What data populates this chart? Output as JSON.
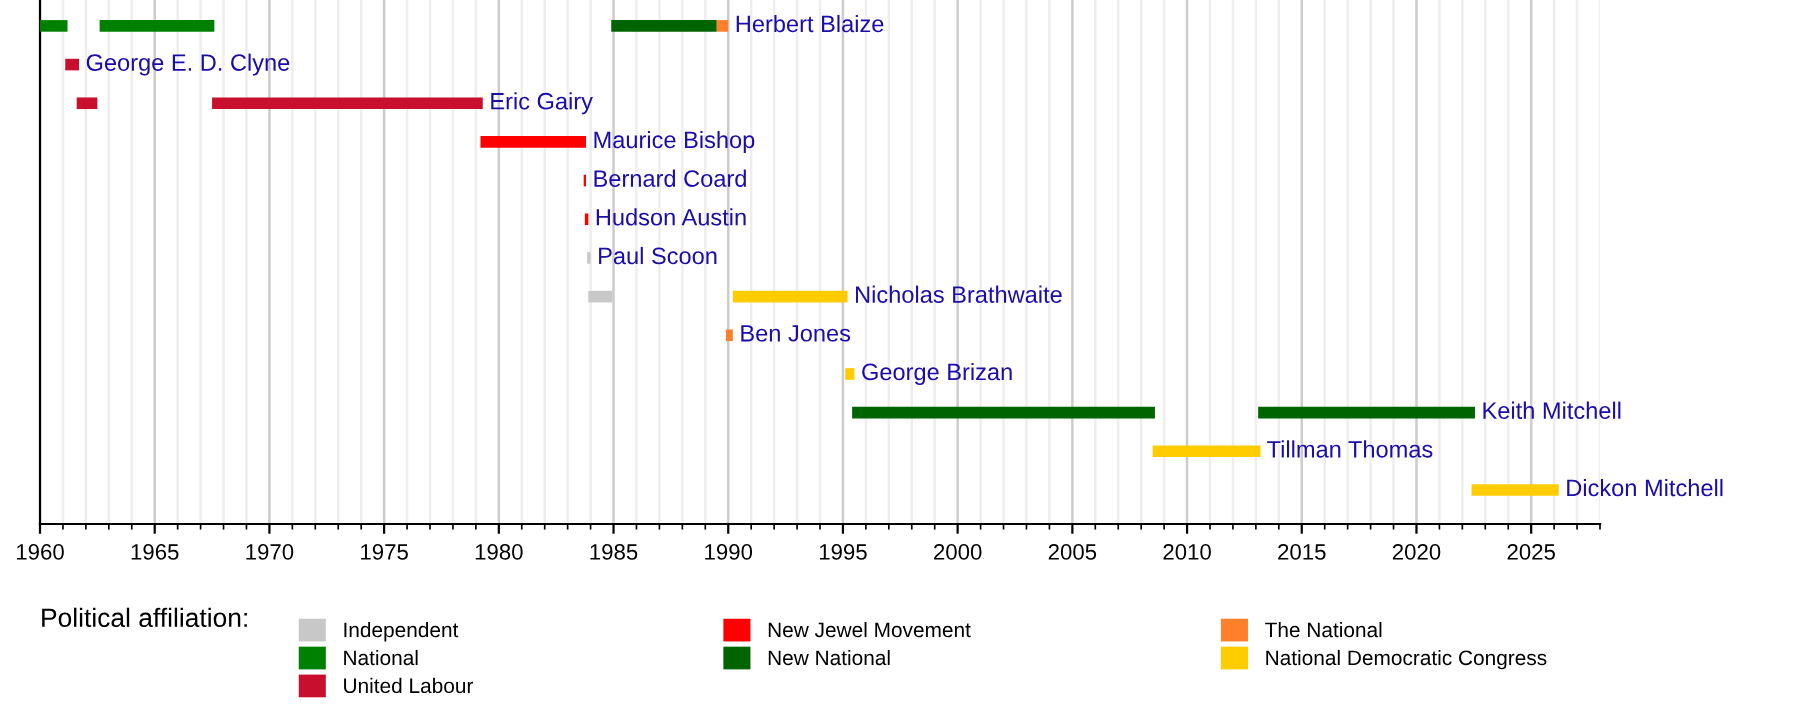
{
  "chart_data": {
    "type": "bar",
    "orientation": "horizontal",
    "categories": [
      "Herbert Blaize",
      "George E. D. Clyne",
      "Eric Gairy",
      "Maurice Bishop",
      "Bernard Coard",
      "Hudson Austin",
      "Paul Scoon",
      "Nicholas Brathwaite",
      "Ben Jones",
      "George Brizan",
      "Keith Mitchell",
      "Tillman Thomas",
      "Dickon Mitchell"
    ],
    "series": [
      {
        "name": "Independent",
        "color": "#c8c8c8",
        "base": [
          null,
          null,
          null,
          null,
          null,
          null,
          1983.85,
          1983.9,
          null,
          null,
          null,
          null,
          null
        ],
        "values": [
          null,
          null,
          null,
          null,
          null,
          null,
          0.15,
          1.05,
          null,
          null,
          null,
          null,
          null
        ]
      },
      {
        "name": "National",
        "color": "#008000",
        "base": [
          1960.0,
          null,
          null,
          null,
          null,
          null,
          null,
          null,
          null,
          null,
          null,
          null,
          null
        ],
        "values": [
          1.2,
          null,
          null,
          null,
          null,
          null,
          null,
          null,
          null,
          null,
          null,
          null,
          null
        ]
      },
      {
        "color": "#008000",
        "base": [
          1962.6,
          null,
          null,
          null,
          null,
          null,
          null,
          null,
          null,
          null,
          null,
          null,
          null
        ],
        "values": [
          5.0,
          null,
          null,
          null,
          null,
          null,
          null,
          null,
          null,
          null,
          null,
          null,
          null
        ]
      },
      {
        "name": "United Labour",
        "color": "#c8102e",
        "base": [
          null,
          1961.1,
          1961.6,
          null,
          null,
          null,
          null,
          null,
          null,
          null,
          null,
          null,
          null
        ],
        "values": [
          null,
          0.6,
          0.9,
          null,
          null,
          null,
          null,
          null,
          null,
          null,
          null,
          null,
          null
        ]
      },
      {
        "color": "#c8102e",
        "base": [
          null,
          null,
          1967.5,
          null,
          null,
          null,
          null,
          null,
          null,
          null,
          null,
          null,
          null
        ],
        "values": [
          null,
          null,
          11.8,
          null,
          null,
          null,
          null,
          null,
          null,
          null,
          null,
          null,
          null
        ]
      },
      {
        "name": "New Jewel Movement",
        "color": "#ff0000",
        "base": [
          null,
          null,
          null,
          1979.2,
          1983.7,
          1983.75,
          null,
          null,
          null,
          null,
          null,
          null,
          null
        ],
        "values": [
          null,
          null,
          null,
          4.6,
          0.1,
          0.15,
          null,
          null,
          null,
          null,
          null,
          null,
          null
        ]
      },
      {
        "name": "New National",
        "color": "#006400",
        "base": [
          1984.9,
          null,
          null,
          null,
          null,
          null,
          null,
          null,
          null,
          null,
          1995.4,
          null,
          null
        ],
        "values": [
          4.6,
          null,
          null,
          null,
          null,
          null,
          null,
          null,
          null,
          null,
          13.2,
          null,
          null
        ]
      },
      {
        "color": "#006400",
        "base": [
          null,
          null,
          null,
          null,
          null,
          null,
          null,
          null,
          null,
          null,
          2013.1,
          null,
          null
        ],
        "values": [
          null,
          null,
          null,
          null,
          null,
          null,
          null,
          null,
          null,
          null,
          9.45,
          null,
          null
        ]
      },
      {
        "name": "The National",
        "color": "#ff7f2a",
        "base": [
          1989.5,
          null,
          null,
          null,
          null,
          null,
          null,
          null,
          1989.9,
          null,
          null,
          null,
          null
        ],
        "values": [
          0.5,
          null,
          null,
          null,
          null,
          null,
          null,
          null,
          0.3,
          null,
          null,
          null,
          null
        ]
      },
      {
        "name": "National Democratic Congress",
        "color": "#ffcc00",
        "base": [
          null,
          null,
          null,
          null,
          null,
          null,
          null,
          1990.2,
          null,
          1995.1,
          null,
          2008.5,
          2022.4
        ],
        "values": [
          null,
          null,
          null,
          null,
          null,
          null,
          null,
          5.0,
          null,
          0.4,
          null,
          4.7,
          3.8
        ]
      }
    ],
    "xlim": [
      1960,
      2028
    ],
    "xticks": [
      1960,
      1965,
      1970,
      1975,
      1980,
      1985,
      1990,
      1995,
      2000,
      2005,
      2010,
      2015,
      2020,
      2025
    ],
    "grid": "x",
    "legend": "bottom",
    "legend_title": "Political affiliation:",
    "tick_labels": "x"
  }
}
